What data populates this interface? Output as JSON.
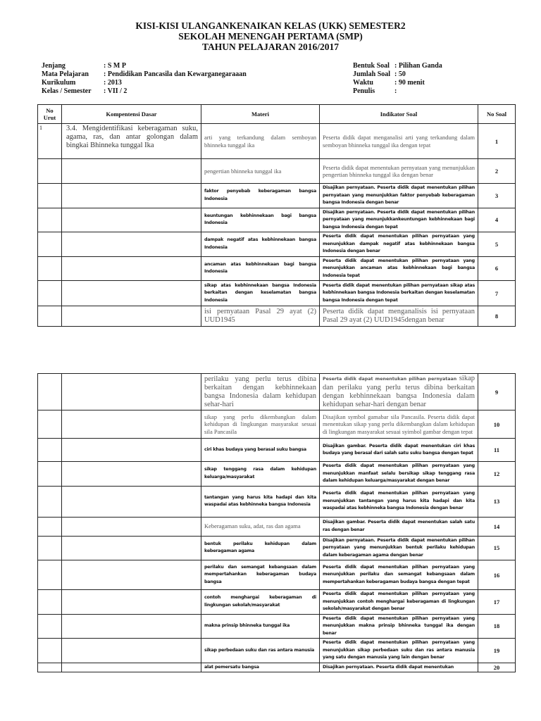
{
  "header": {
    "title_line1": "KISI-KISI ULANGANKENAIKAN KELAS (UKK) SEMESTER2",
    "title_line2": "SEKOLAH MENENGAH PERTAMA (SMP)",
    "title_line3": "TAHUN PELAJARAN 2016/2017"
  },
  "meta_left": [
    {
      "label": "Jenjang",
      "value": ": S M P"
    },
    {
      "label": "Mata Pelajaran",
      "value": ": Pendidikan Pancasila dan Kewarganegaraaan"
    },
    {
      "label": "Kurikulum",
      "value": ": 2013"
    },
    {
      "label": "Kelas / Semester",
      "value": ": VII / 2"
    }
  ],
  "meta_right": [
    {
      "label": "Bentuk Soal",
      "value": ": Pilihan Ganda"
    },
    {
      "label": "Jumlah Soal",
      "value": ": 50"
    },
    {
      "label": "Waktu",
      "value": ": 90 menit"
    },
    {
      "label": "Penulis",
      "value": ":"
    }
  ],
  "table_headers": {
    "no_urut": "No Urut",
    "kompetensi_dasar": "Kompentensi Dasar",
    "materi": "Materi",
    "indikator": "Indikator Soal",
    "no_soal": "No Soal"
  },
  "page1_rows": [
    {
      "urut": "1",
      "kd": "3.4. Mengidentifikasi keberagaman suku, agama, ras, dan antar golongan dalam bingkai Bhinneka tunggal Ika",
      "materi": "arti yang terkandung dalam semboyan bhinneka tunggal ika",
      "indikator": "Peserta didik dapat menganalisi arti yang terkandung dalam semboyan bhinneka tunggal ika dengan tepat",
      "no": "1"
    },
    {
      "urut": "",
      "kd": "",
      "materi": "pengertian bhinneka tunggal ika",
      "indikator": "Peserta didik dapat menentukan pernyataan yang menunjukkan pengertian bhinneka tunggal ika dengan benar",
      "no": "2"
    },
    {
      "urut": "",
      "kd": "",
      "materi": "faktor penyebab keberagaman bangsa Indonesia",
      "indikator": "Disajikan pernyataan. Peserta didik dapat menentukan pilihan pernyataan yang menunjukkan faktor penyebab keberagaman bangsa Indonesia dengan benar",
      "no": "3"
    },
    {
      "urut": "",
      "kd": "",
      "materi": "keuntungan kebhinnekaan bagi bangsa Indonesia",
      "indikator": "Disajikan pernyataan. Peserta didik dapat menentukan pilihan pernyataan yang menunjukkankeuntungan kebhinnekaan bagi bangsa Indonesia dengan tepat",
      "no": "4"
    },
    {
      "urut": "",
      "kd": "",
      "materi": "dampak negatif atas kebhinnekaan bangsa Indonesia",
      "indikator": "Peserta didik dapat menentukan pilihan pernyataan yang menunjukkan dampak negatif atas kebhinnekaan bangsa Indonesia dengan benar",
      "no": "5"
    },
    {
      "urut": "",
      "kd": "",
      "materi": "ancaman atas kebhinnekaan bagi bangsa Indonesia",
      "indikator": "Peserta didik dapat menentukan pilihan pernyataan yang menunjukkan ancaman atas kebhinnekaan bagi bangsa Indonesia tepat",
      "no": "6"
    },
    {
      "urut": "",
      "kd": "",
      "materi": "sikap atas kebhinnekaan bangsa Indonesia berkaitan dengan keselamatan bangsa Indonesia",
      "indikator": "Peserta didik dapat menentukan pilihan pernyataan sikap atas kebhinnekaan bangsa Indonesia berkaitan dengan keselamatan bangsa Indonesia dengan tepat",
      "no": "7"
    },
    {
      "urut": "",
      "kd": "",
      "materi": "isi pernyataan Pasal 29 ayat (2) UUD1945",
      "indikator": "Peserta didik dapat menganalisis isi pernyataan Pasal 29 ayat (2) UUD1945dengan benar",
      "no": "8"
    }
  ],
  "page2_rows": [
    {
      "urut": "",
      "kd": "",
      "materi": "perilaku yang perlu terus dibina berkaitan dengan kebhinnekaan bangsa Indonesia dalam kehidupan sehar-hari",
      "indikator_lead": "Peserta didik dapat menentukan pilihan pernyataan",
      "indikator": " sikap dan perilaku yang perlu terus dibina berkaitan dengan kebhinnekaan bangsa Indonesia dalam kehidupan sehar-hari dengan benar",
      "no": "9"
    },
    {
      "urut": "",
      "kd": "",
      "materi": "sikap yang perlu dikembangkan dalam kehidupan di lingkungan masyarakat sesuai sila Pancasila",
      "indikator": "Disajikan symbol gamabar sila Pancasila. Peserta didik dapat menentukan sikap yang perlu dikembangkan dalam kehidupan di lingkungan masyarakat sesuai syimbol gambar dengan tepat",
      "no": "10"
    },
    {
      "urut": "",
      "kd": "",
      "materi": "ciri khas budaya yang berasal suku bangsa",
      "indikator": "Disajikan gambar. Peserta didik dapat menentukan ciri khas budaya yang berasal dari salah satu suku bangsa dengan tepat",
      "no": "11"
    },
    {
      "urut": "",
      "kd": "",
      "materi": "sikap tenggang rasa dalam kehidupan keluarga/masyarakat",
      "indikator": "Peserta didik dapat menentukan pilihan pernyataan yang menunjukkan manfaat selalu bersikap sikap tenggang rasa dalam kehidupan keluarga/masyarakat dengan benar",
      "no": "12"
    },
    {
      "urut": "",
      "kd": "",
      "materi": "tantangan yang harus kita hadapi dan kita waspadai atas kebhinneka bangsa Indonesia",
      "indikator": "Peserta didik dapat menentukan pilihan pernyataan yang menunjukkan tantangan yang harus kita hadapi dan kita waspadai atas kebhinneka bangsa Indonesia dengan benar",
      "no": "13"
    },
    {
      "urut": "",
      "kd": "",
      "materi": "Keberagaman suku, adat, ras dan agama",
      "indikator": "Disajikan gambar. Peserta didik dapat menentukan salah satu ras dengan benar",
      "no": "14"
    },
    {
      "urut": "",
      "kd": "",
      "materi": "bentuk perilaku kehidupan dalam keberagaman agama",
      "indikator": "Disajikan pernyataan. Peserta didik dapat menentukan pilihan pernyataan yang menunjukkan bentuk perilaku kehidupan dalam keberagaman agama dengan benar",
      "no": "15"
    },
    {
      "urut": "",
      "kd": "",
      "materi": "perilaku dan semangat kebangsaan dalam mempertahankan keberagaman budaya bangsa",
      "indikator": "Peserta didik dapat menentukan pilihan pernyataan yang menunjukkan perilaku dan semangat kebangsaan dalam mempertahankan keberagaman budaya bangsa dengan tepat",
      "no": "16"
    },
    {
      "urut": "",
      "kd": "",
      "materi": "contoh menghargai keberagaman di lingkungan sekolah/masyarakat",
      "indikator": "Peserta didik dapat menentukan pilihan pernyataan yang menunjukkan contoh menghargai keberagaman di lingkungan sekolah/masyarakat dengan benar",
      "no": "17"
    },
    {
      "urut": "",
      "kd": "",
      "materi": "makna prinsip bhinneka tunggal ika",
      "indikator": "Peserta didik dapat menentukan pilihan pernyataan yang menunjukkan makna prinsip bhinneka tunggal ika dengan benar",
      "no": "18"
    },
    {
      "urut": "",
      "kd": "",
      "materi": "sikap perbedaan suku dan ras antara manusia",
      "indikator": "Peserta didik dapat menentukan pilihan pernyataan yang menunjukkan sikap perbedaan suku dan ras antara manusia yang satu dengan manusia yang lain dengan benar",
      "no": "19"
    },
    {
      "urut": "",
      "kd": "",
      "materi": "alat pemersatu bangsa",
      "indikator": "Disajikan pernyataan. Peserta didik dapat menentukan",
      "no": "20"
    }
  ]
}
